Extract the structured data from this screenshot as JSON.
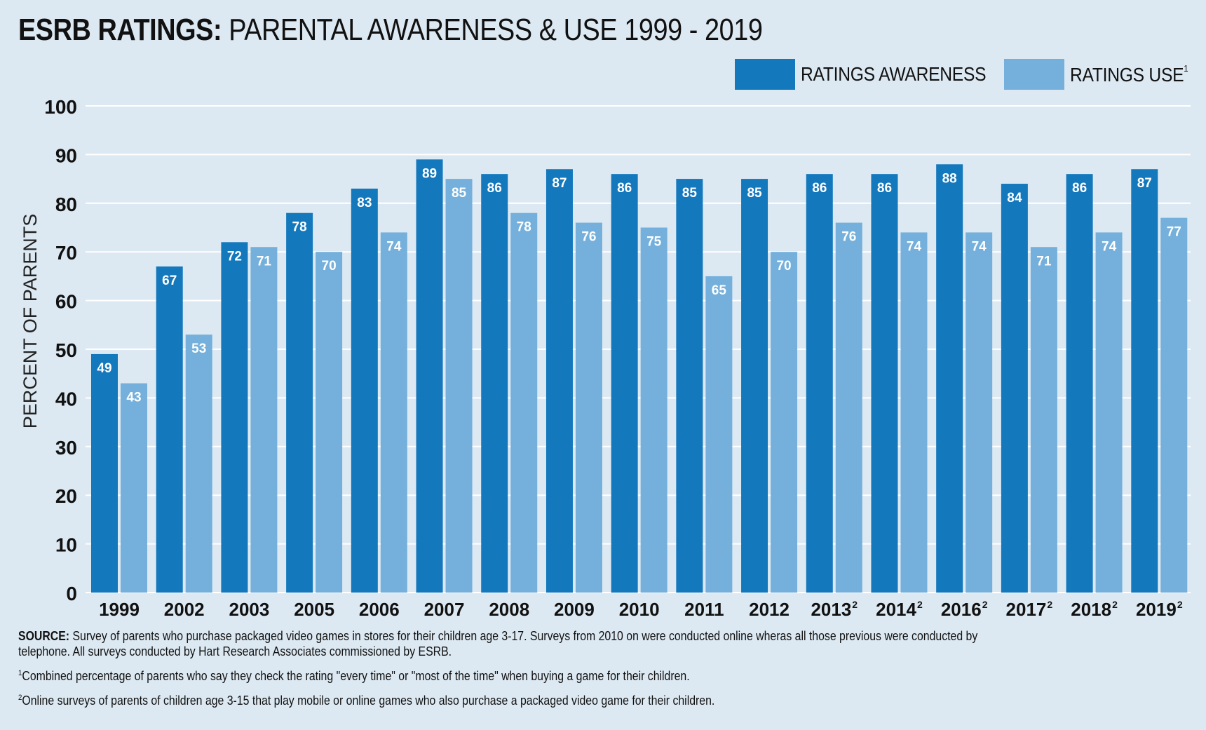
{
  "header": {
    "title_bold": "ESRB RATINGS:",
    "title_light": "PARENTAL AWARENESS & USE  1999 - 2019"
  },
  "legend": {
    "awareness_label": "RATINGS AWARENESS",
    "use_label": "RATINGS USE",
    "use_superscript": "1"
  },
  "colors": {
    "awareness": "#1478bd",
    "use": "#74b0db",
    "background": "#dde9f2",
    "gridline": "#ffffff"
  },
  "chart_data": {
    "type": "bar",
    "ylabel": "PERCENT OF PARENTS",
    "ylim": [
      0,
      100
    ],
    "yticks": [
      0,
      10,
      20,
      30,
      40,
      50,
      60,
      70,
      80,
      90,
      100
    ],
    "grid": true,
    "legend_position": "top-right",
    "categories": [
      "1999",
      "2002",
      "2003",
      "2005",
      "2006",
      "2007",
      "2008",
      "2009",
      "2010",
      "2011",
      "2012",
      "2013",
      "2014",
      "2016",
      "2017",
      "2018",
      "2019"
    ],
    "category_superscripts": [
      "",
      "",
      "",
      "",
      "",
      "",
      "",
      "",
      "",
      "",
      "",
      "2",
      "2",
      "2",
      "2",
      "2",
      "2"
    ],
    "series": [
      {
        "name": "RATINGS AWARENESS",
        "values": [
          49,
          67,
          72,
          78,
          83,
          89,
          86,
          87,
          86,
          85,
          85,
          86,
          86,
          88,
          84,
          86,
          87
        ]
      },
      {
        "name": "RATINGS USE",
        "values": [
          43,
          53,
          71,
          70,
          74,
          85,
          78,
          76,
          75,
          65,
          70,
          76,
          74,
          74,
          71,
          74,
          77
        ]
      }
    ]
  },
  "footnotes": {
    "source_label": "SOURCE:",
    "source_text": "Survey of parents who purchase packaged video games in stores for their children age 3-17. Surveys from 2010 on were conducted online wheras all those previous were conducted by telephone. All surveys conducted by Hart Research Associates commissioned by ESRB.",
    "note1_marker": "1",
    "note1_text": "Combined percentage of parents who say they check the rating \"every time\" or \"most of the time\" when buying a game for their children.",
    "note2_marker": "2",
    "note2_text": "Online surveys of parents of children age 3-15 that play mobile or online games who also purchase a packaged video game for their children."
  }
}
